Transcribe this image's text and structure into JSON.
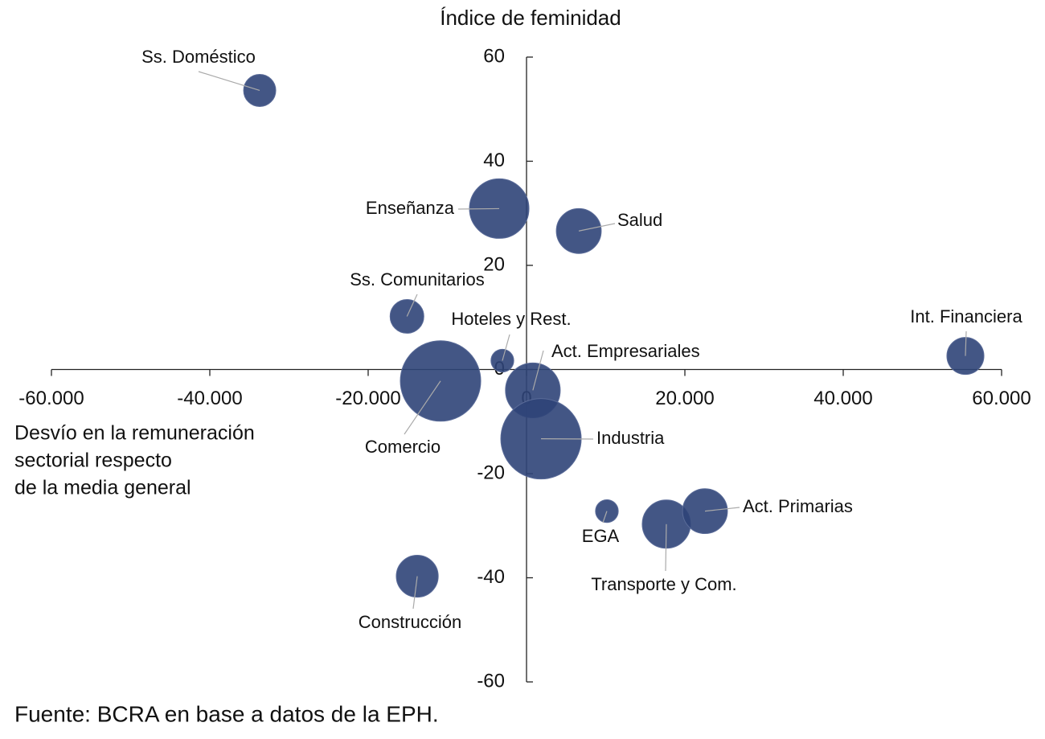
{
  "chart_data": {
    "type": "scatter",
    "ylabel": "Índice de feminidad",
    "xlabel": [
      "Desvío en la remuneración",
      "sectorial respecto",
      "de la media general"
    ],
    "source": "Fuente: BCRA en base a datos de la EPH.",
    "xlim": [
      -60000,
      60000
    ],
    "xticks": [
      {
        "value": -60000,
        "label": "-60.000"
      },
      {
        "value": -40000,
        "label": "-40.000"
      },
      {
        "value": -20000,
        "label": "-20.000"
      },
      0,
      {
        "value": 20000,
        "label": "20.000"
      },
      {
        "value": 40000,
        "label": "40.000"
      },
      {
        "value": 60000,
        "label": "60.000"
      }
    ],
    "ylim": [
      -60,
      60
    ],
    "yticks": [
      60,
      40,
      20,
      0,
      -20,
      -40,
      -60
    ],
    "color": "#2f4478",
    "series": [
      {
        "labels": [
          "Ss. Doméstico",
          "Enseñanza",
          "Salud",
          "Ss. Comunitarios",
          "Hoteles y Rest.",
          "Comercio",
          "Act. Empresariales",
          "Industria",
          "Int. Financiera",
          "EGA",
          "Transporte y Com.",
          "Act. Primarias",
          "Construcción"
        ],
        "x": [
          -33700,
          -3450,
          6600,
          -15100,
          -3050,
          -10860,
          800,
          1830,
          55430,
          10150,
          17660,
          22540,
          -13800
        ],
        "values": [
          53.6,
          30.9,
          26.6,
          10.2,
          1.7,
          -2.2,
          -4,
          -13.3,
          2.6,
          -27.2,
          -29.7,
          -27.2,
          -39.7
        ],
        "sizes": [
          4,
          13.7,
          7.8,
          4.4,
          2,
          25,
          11.6,
          25,
          5.3,
          2,
          9,
          7.8,
          6.8
        ]
      }
    ]
  }
}
